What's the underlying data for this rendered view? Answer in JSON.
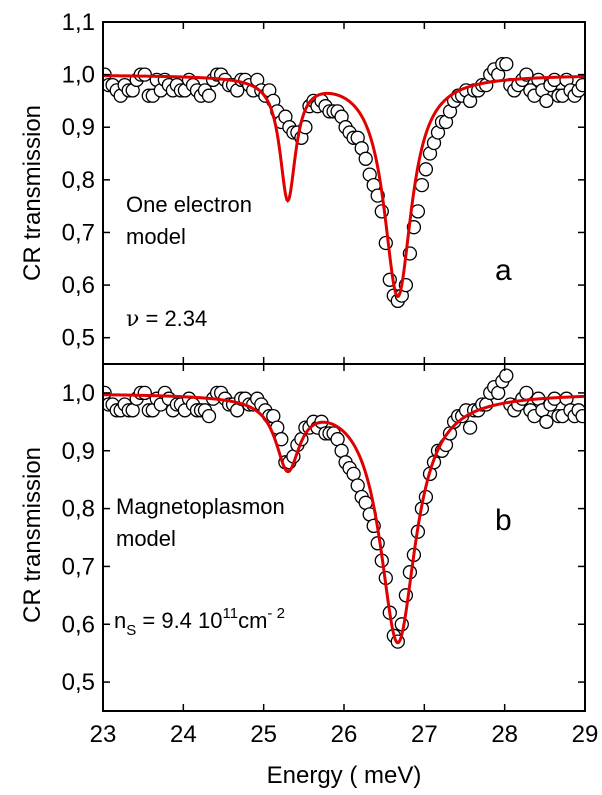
{
  "chart_data": {
    "type": "scatter",
    "xlabel": "Energy ( meV)",
    "x_ticks": [
      "23",
      "24",
      "25",
      "26",
      "27",
      "28",
      "29"
    ],
    "xlim": [
      23,
      29
    ],
    "colors": {
      "fit": "#e00000",
      "points_stroke": "#000000"
    },
    "panels": [
      {
        "id": "a",
        "letter": "a",
        "ylabel": "CR transmission",
        "ylim": [
          0.45,
          1.1
        ],
        "y_ticks": [
          "0,5",
          "0,6",
          "0,7",
          "0,8",
          "0,9",
          "1,0",
          "1,1"
        ],
        "y_tick_values": [
          0.5,
          0.6,
          0.7,
          0.8,
          0.9,
          1.0,
          1.1
        ],
        "annotation_lines": [
          "One electron",
          "model"
        ],
        "param_symbol": "ν",
        "param_text": " = 2.34",
        "fit": {
          "baseline": 1.0,
          "peaks": [
            {
              "x0": 25.3,
              "depth": 0.23,
              "hwhm": 0.12
            },
            {
              "x0": 26.67,
              "depth": 0.42,
              "hwhm": 0.21
            }
          ]
        },
        "points": [
          [
            23.02,
            1.0
          ],
          [
            23.07,
            0.98
          ],
          [
            23.12,
            0.98
          ],
          [
            23.17,
            0.97
          ],
          [
            23.22,
            0.96
          ],
          [
            23.27,
            0.98
          ],
          [
            23.32,
            0.97
          ],
          [
            23.37,
            0.97
          ],
          [
            23.42,
            0.99
          ],
          [
            23.47,
            1.0
          ],
          [
            23.52,
            1.0
          ],
          [
            23.57,
            0.96
          ],
          [
            23.62,
            0.96
          ],
          [
            23.67,
            0.99
          ],
          [
            23.72,
            0.97
          ],
          [
            23.77,
            0.99
          ],
          [
            23.82,
            0.98
          ],
          [
            23.87,
            0.97
          ],
          [
            23.92,
            0.98
          ],
          [
            23.97,
            0.97
          ],
          [
            24.02,
            0.97
          ],
          [
            24.07,
            0.99
          ],
          [
            24.12,
            0.98
          ],
          [
            24.17,
            0.97
          ],
          [
            24.22,
            0.96
          ],
          [
            24.27,
            0.97
          ],
          [
            24.32,
            0.96
          ],
          [
            24.37,
            0.99
          ],
          [
            24.42,
            1.0
          ],
          [
            24.47,
            1.0
          ],
          [
            24.52,
            0.99
          ],
          [
            24.57,
            0.98
          ],
          [
            24.62,
            0.98
          ],
          [
            24.67,
            0.97
          ],
          [
            24.72,
            0.99
          ],
          [
            24.77,
            0.99
          ],
          [
            24.82,
            0.98
          ],
          [
            24.87,
            0.97
          ],
          [
            24.92,
            0.99
          ],
          [
            24.97,
            0.97
          ],
          [
            25.02,
            0.96
          ],
          [
            25.07,
            0.97
          ],
          [
            25.12,
            0.95
          ],
          [
            25.17,
            0.93
          ],
          [
            25.22,
            0.91
          ],
          [
            25.27,
            0.92
          ],
          [
            25.32,
            0.9
          ],
          [
            25.37,
            0.89
          ],
          [
            25.42,
            0.89
          ],
          [
            25.47,
            0.88
          ],
          [
            25.52,
            0.9
          ],
          [
            25.57,
            0.94
          ],
          [
            25.62,
            0.95
          ],
          [
            25.67,
            0.94
          ],
          [
            25.72,
            0.95
          ],
          [
            25.77,
            0.94
          ],
          [
            25.82,
            0.93
          ],
          [
            25.87,
            0.93
          ],
          [
            25.92,
            0.93
          ],
          [
            25.97,
            0.92
          ],
          [
            26.02,
            0.9
          ],
          [
            26.07,
            0.89
          ],
          [
            26.12,
            0.88
          ],
          [
            26.17,
            0.88
          ],
          [
            26.22,
            0.86
          ],
          [
            26.27,
            0.84
          ],
          [
            26.32,
            0.81
          ],
          [
            26.37,
            0.79
          ],
          [
            26.42,
            0.77
          ],
          [
            26.47,
            0.74
          ],
          [
            26.52,
            0.68
          ],
          [
            26.57,
            0.61
          ],
          [
            26.62,
            0.58
          ],
          [
            26.67,
            0.57
          ],
          [
            26.72,
            0.58
          ],
          [
            26.77,
            0.6
          ],
          [
            26.82,
            0.66
          ],
          [
            26.87,
            0.71
          ],
          [
            26.92,
            0.74
          ],
          [
            26.97,
            0.79
          ],
          [
            27.02,
            0.82
          ],
          [
            27.07,
            0.85
          ],
          [
            27.12,
            0.87
          ],
          [
            27.17,
            0.89
          ],
          [
            27.22,
            0.91
          ],
          [
            27.27,
            0.91
          ],
          [
            27.32,
            0.93
          ],
          [
            27.37,
            0.95
          ],
          [
            27.42,
            0.96
          ],
          [
            27.47,
            0.96
          ],
          [
            27.52,
            0.97
          ],
          [
            27.57,
            0.95
          ],
          [
            27.62,
            0.97
          ],
          [
            27.67,
            0.97
          ],
          [
            27.72,
            0.98
          ],
          [
            27.77,
            0.98
          ],
          [
            27.82,
            1.0
          ],
          [
            27.87,
            1.01
          ],
          [
            27.92,
            1.0
          ],
          [
            27.97,
            1.02
          ],
          [
            28.02,
            1.02
          ],
          [
            28.07,
            0.98
          ],
          [
            28.12,
            0.97
          ],
          [
            28.17,
            0.98
          ],
          [
            28.22,
            0.99
          ],
          [
            28.27,
            1.0
          ],
          [
            28.32,
            0.97
          ],
          [
            28.37,
            0.96
          ],
          [
            28.42,
            0.99
          ],
          [
            28.47,
            0.97
          ],
          [
            28.52,
            0.95
          ],
          [
            28.57,
            0.98
          ],
          [
            28.62,
            0.99
          ],
          [
            28.67,
            0.96
          ],
          [
            28.72,
            0.96
          ],
          [
            28.77,
            0.99
          ],
          [
            28.82,
            0.97
          ],
          [
            28.87,
            0.96
          ],
          [
            28.92,
            0.97
          ],
          [
            28.97,
            0.98
          ]
        ]
      },
      {
        "id": "b",
        "letter": "b",
        "ylabel": "CR transmission",
        "ylim": [
          0.45,
          1.05
        ],
        "y_ticks": [
          "0,5",
          "0,6",
          "0,7",
          "0,8",
          "0,9",
          "1,0"
        ],
        "y_tick_values": [
          0.5,
          0.6,
          0.7,
          0.8,
          0.9,
          1.0
        ],
        "annotation_lines": [
          "Magnetoplasmon",
          "model"
        ],
        "param_n": "n",
        "param_sub": "S",
        "param_main": " = 9.4 10",
        "param_exp": "11",
        "param_unit": "cm",
        "param_unit_exp": "- 2",
        "fit": {
          "baseline": 1.0,
          "peaks": [
            {
              "x0": 25.3,
              "depth": 0.12,
              "hwhm": 0.18
            },
            {
              "x0": 26.67,
              "depth": 0.43,
              "hwhm": 0.27
            }
          ]
        },
        "points": [
          [
            23.02,
            1.0
          ],
          [
            23.07,
            0.98
          ],
          [
            23.12,
            0.98
          ],
          [
            23.17,
            0.97
          ],
          [
            23.22,
            0.97
          ],
          [
            23.27,
            0.98
          ],
          [
            23.32,
            0.97
          ],
          [
            23.37,
            0.97
          ],
          [
            23.42,
            0.99
          ],
          [
            23.47,
            1.0
          ],
          [
            23.52,
            1.0
          ],
          [
            23.57,
            0.97
          ],
          [
            23.62,
            0.97
          ],
          [
            23.67,
            0.99
          ],
          [
            23.72,
            0.98
          ],
          [
            23.77,
            1.0
          ],
          [
            23.82,
            0.99
          ],
          [
            23.87,
            0.97
          ],
          [
            23.92,
            0.98
          ],
          [
            23.97,
            0.98
          ],
          [
            24.02,
            0.97
          ],
          [
            24.07,
            0.99
          ],
          [
            24.12,
            0.98
          ],
          [
            24.17,
            0.97
          ],
          [
            24.22,
            0.97
          ],
          [
            24.27,
            0.97
          ],
          [
            24.32,
            0.96
          ],
          [
            24.37,
            0.99
          ],
          [
            24.42,
            1.0
          ],
          [
            24.47,
            1.0
          ],
          [
            24.52,
            0.99
          ],
          [
            24.57,
            0.98
          ],
          [
            24.62,
            0.98
          ],
          [
            24.67,
            0.97
          ],
          [
            24.72,
            0.99
          ],
          [
            24.77,
            0.99
          ],
          [
            24.82,
            0.98
          ],
          [
            24.87,
            0.98
          ],
          [
            24.92,
            0.99
          ],
          [
            24.97,
            0.98
          ],
          [
            25.02,
            0.97
          ],
          [
            25.07,
            0.96
          ],
          [
            25.12,
            0.96
          ],
          [
            25.17,
            0.94
          ],
          [
            25.22,
            0.92
          ],
          [
            25.27,
            0.88
          ],
          [
            25.32,
            0.88
          ],
          [
            25.37,
            0.89
          ],
          [
            25.42,
            0.91
          ],
          [
            25.47,
            0.92
          ],
          [
            25.52,
            0.94
          ],
          [
            25.57,
            0.94
          ],
          [
            25.62,
            0.95
          ],
          [
            25.67,
            0.94
          ],
          [
            25.72,
            0.95
          ],
          [
            25.77,
            0.93
          ],
          [
            25.82,
            0.93
          ],
          [
            25.87,
            0.93
          ],
          [
            25.92,
            0.92
          ],
          [
            25.97,
            0.9
          ],
          [
            26.02,
            0.88
          ],
          [
            26.07,
            0.87
          ],
          [
            26.12,
            0.86
          ],
          [
            26.17,
            0.84
          ],
          [
            26.22,
            0.82
          ],
          [
            26.27,
            0.81
          ],
          [
            26.32,
            0.79
          ],
          [
            26.37,
            0.77
          ],
          [
            26.42,
            0.74
          ],
          [
            26.47,
            0.71
          ],
          [
            26.52,
            0.68
          ],
          [
            26.57,
            0.62
          ],
          [
            26.62,
            0.58
          ],
          [
            26.67,
            0.57
          ],
          [
            26.72,
            0.6
          ],
          [
            26.77,
            0.65
          ],
          [
            26.82,
            0.69
          ],
          [
            26.87,
            0.72
          ],
          [
            26.92,
            0.76
          ],
          [
            26.97,
            0.8
          ],
          [
            27.02,
            0.82
          ],
          [
            27.07,
            0.86
          ],
          [
            27.12,
            0.88
          ],
          [
            27.17,
            0.9
          ],
          [
            27.22,
            0.9
          ],
          [
            27.27,
            0.91
          ],
          [
            27.32,
            0.93
          ],
          [
            27.37,
            0.95
          ],
          [
            27.42,
            0.96
          ],
          [
            27.47,
            0.96
          ],
          [
            27.52,
            0.97
          ],
          [
            27.57,
            0.94
          ],
          [
            27.62,
            0.97
          ],
          [
            27.67,
            0.97
          ],
          [
            27.72,
            0.98
          ],
          [
            27.77,
            0.98
          ],
          [
            27.82,
            1.0
          ],
          [
            27.87,
            1.01
          ],
          [
            27.92,
            1.0
          ],
          [
            27.97,
            1.02
          ],
          [
            28.02,
            1.03
          ],
          [
            28.07,
            0.98
          ],
          [
            28.12,
            0.97
          ],
          [
            28.17,
            0.98
          ],
          [
            28.22,
            0.99
          ],
          [
            28.27,
            1.0
          ],
          [
            28.32,
            0.97
          ],
          [
            28.37,
            0.96
          ],
          [
            28.42,
            0.99
          ],
          [
            28.47,
            0.97
          ],
          [
            28.52,
            0.95
          ],
          [
            28.57,
            0.98
          ],
          [
            28.62,
            0.99
          ],
          [
            28.67,
            0.96
          ],
          [
            28.72,
            0.96
          ],
          [
            28.77,
            0.99
          ],
          [
            28.82,
            0.97
          ],
          [
            28.87,
            0.96
          ],
          [
            28.92,
            0.97
          ],
          [
            28.97,
            0.96
          ]
        ]
      }
    ]
  }
}
